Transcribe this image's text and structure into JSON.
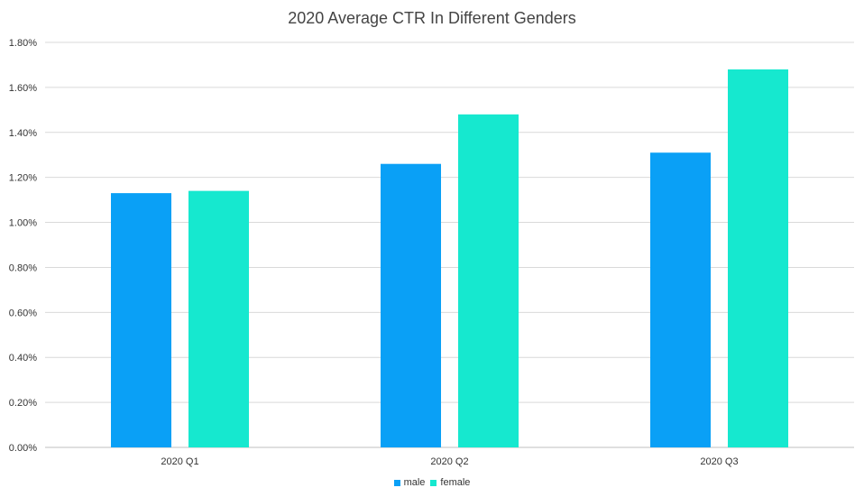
{
  "chart_data": {
    "type": "bar",
    "title": "2020 Average CTR In Different Genders",
    "categories": [
      "2020 Q1",
      "2020 Q2",
      "2020 Q3"
    ],
    "series": [
      {
        "name": "male",
        "color": "#0aa0f6",
        "values": [
          1.13,
          1.26,
          1.31
        ]
      },
      {
        "name": "female",
        "color": "#16e8cf",
        "values": [
          1.14,
          1.48,
          1.68
        ]
      }
    ],
    "ylim": [
      0,
      1.8
    ],
    "yticks": [
      "0.00%",
      "0.20%",
      "0.40%",
      "0.60%",
      "0.80%",
      "1.00%",
      "1.20%",
      "1.40%",
      "1.60%",
      "1.80%"
    ],
    "ytick_values": [
      0,
      0.2,
      0.4,
      0.6,
      0.8,
      1.0,
      1.2,
      1.4,
      1.6,
      1.8
    ],
    "grid": true,
    "legend_position": "bottom"
  }
}
